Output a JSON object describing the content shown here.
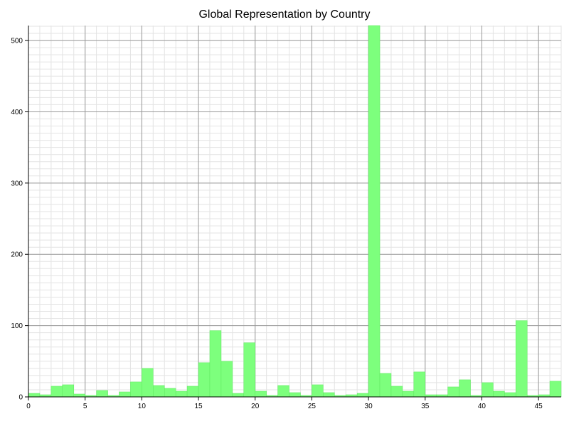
{
  "chart_data": {
    "type": "bar",
    "title": "Global Representation by Country",
    "xlabel": "",
    "ylabel": "",
    "x": [
      0,
      1,
      2,
      3,
      4,
      5,
      6,
      7,
      8,
      9,
      10,
      11,
      12,
      13,
      14,
      15,
      16,
      17,
      18,
      19,
      20,
      21,
      22,
      23,
      24,
      25,
      26,
      27,
      28,
      29,
      30,
      31,
      32,
      33,
      34,
      35,
      36,
      37,
      38,
      39,
      40,
      41,
      42,
      43,
      44,
      45,
      46
    ],
    "values": [
      5,
      3,
      15,
      17,
      4,
      2,
      9,
      2,
      7,
      21,
      40,
      16,
      12,
      8,
      15,
      48,
      93,
      50,
      5,
      76,
      8,
      2,
      16,
      6,
      2,
      17,
      6,
      2,
      3,
      5,
      521,
      33,
      15,
      8,
      35,
      3,
      3,
      14,
      24,
      2,
      20,
      8,
      6,
      107,
      2,
      3,
      22
    ],
    "xlim": [
      0,
      47
    ],
    "ylim": [
      0,
      521
    ],
    "xticks": [
      "0",
      "5",
      "10",
      "15",
      "20",
      "25",
      "30",
      "35",
      "40",
      "45"
    ],
    "yticks": [
      "0",
      "100",
      "200",
      "300",
      "400",
      "500"
    ],
    "grid": true,
    "bar_color": "#7dff7d",
    "bar_edge_color": "#5ee85e"
  }
}
